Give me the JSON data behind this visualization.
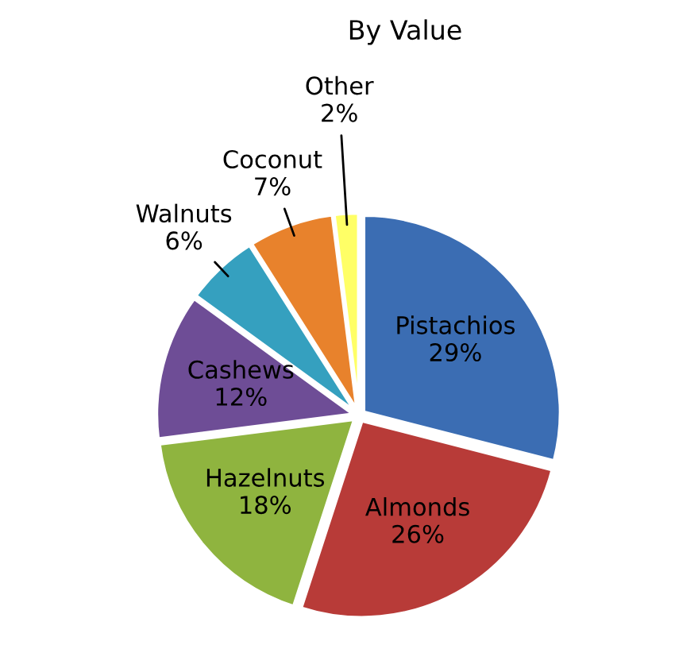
{
  "chart_data": {
    "type": "pie",
    "title": "By Value",
    "categories": [
      "Pistachios",
      "Almonds",
      "Hazelnuts",
      "Cashews",
      "Walnuts",
      "Coconut",
      "Other"
    ],
    "values": [
      29,
      26,
      18,
      12,
      6,
      7,
      2
    ],
    "value_labels": [
      "29%",
      "26%",
      "18%",
      "12%",
      "6%",
      "7%",
      "2%"
    ],
    "colors": [
      "#3b6db3",
      "#b83b38",
      "#8fb43f",
      "#6e4d96",
      "#35a0bf",
      "#e8822c",
      "#ffff66"
    ],
    "legend": false
  }
}
